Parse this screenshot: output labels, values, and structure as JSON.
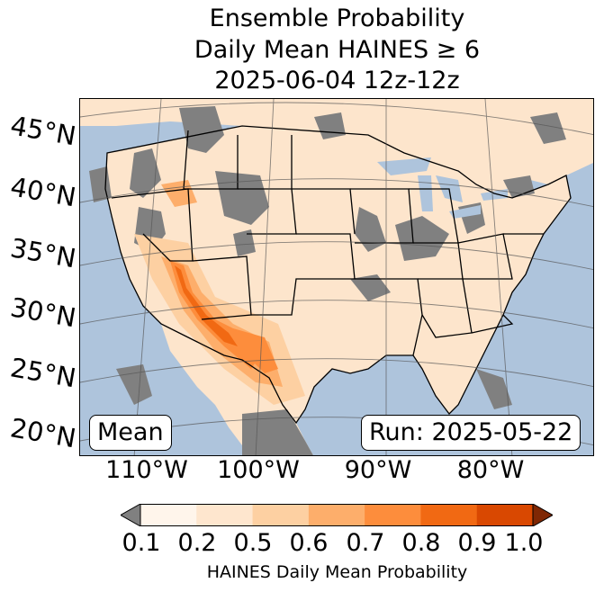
{
  "title": {
    "line1": "Ensemble Probability",
    "line2": "Daily Mean HAINES ≥ 6",
    "line3": "2025-06-04 12z-12z"
  },
  "map": {
    "lat_labels": [
      "45°N",
      "40°N",
      "35°N",
      "30°N",
      "25°N",
      "20°N"
    ],
    "lon_labels": [
      "110°W",
      "100°W",
      "90°W",
      "80°W"
    ],
    "mean_label": "Mean",
    "run_label": "Run: 2025-05-22",
    "colors": {
      "ocean": "#aec4dc",
      "land": "#fde5cc",
      "no_data": "#808080",
      "state_lines": "#000000",
      "graticule": "#555555"
    }
  },
  "colorbar": {
    "ticks": [
      "0.1",
      "0.2",
      "0.5",
      "0.6",
      "0.7",
      "0.8",
      "0.9",
      "1.0"
    ],
    "colors": [
      "#fff5eb",
      "#fee6ce",
      "#fdd0a2",
      "#fdae6b",
      "#fd8d3c",
      "#f16913",
      "#d94801",
      "#a63603"
    ],
    "under_color": "#808080",
    "over_color": "#7f2704",
    "label": "HAINES Daily Mean Probability"
  }
}
